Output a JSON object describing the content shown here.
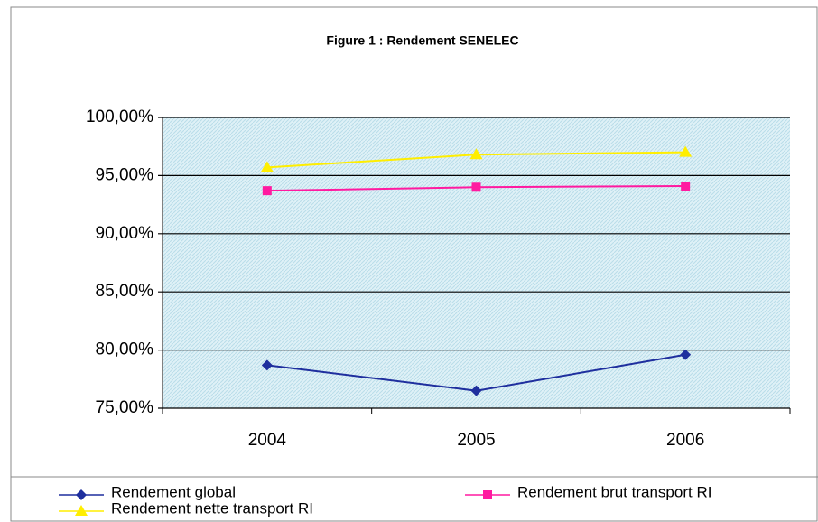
{
  "chart_data": {
    "type": "line",
    "title": "Figure 1 : Rendement SENELEC",
    "categories": [
      "2004",
      "2005",
      "2006"
    ],
    "series": [
      {
        "name": "Rendement global",
        "color": "#1f2f9e",
        "marker": "diamond",
        "values": [
          78.7,
          76.5,
          79.6
        ]
      },
      {
        "name": "Rendement brut transport RI",
        "color": "#ff1aa0",
        "marker": "square",
        "values": [
          93.7,
          94.0,
          94.1
        ]
      },
      {
        "name": "Rendement nette transport RI",
        "color": "#ffee00",
        "marker": "triangle",
        "values": [
          95.7,
          96.8,
          97.0
        ]
      }
    ],
    "ylim": [
      75,
      100
    ],
    "yticks": [
      {
        "value": 75,
        "label": "75,00%"
      },
      {
        "value": 80,
        "label": "80,00%"
      },
      {
        "value": 85,
        "label": "85,00%"
      },
      {
        "value": 90,
        "label": "90,00%"
      },
      {
        "value": 95,
        "label": "95,00%"
      },
      {
        "value": 100,
        "label": "100,00%"
      }
    ],
    "grid": true,
    "legend": "bottom"
  }
}
